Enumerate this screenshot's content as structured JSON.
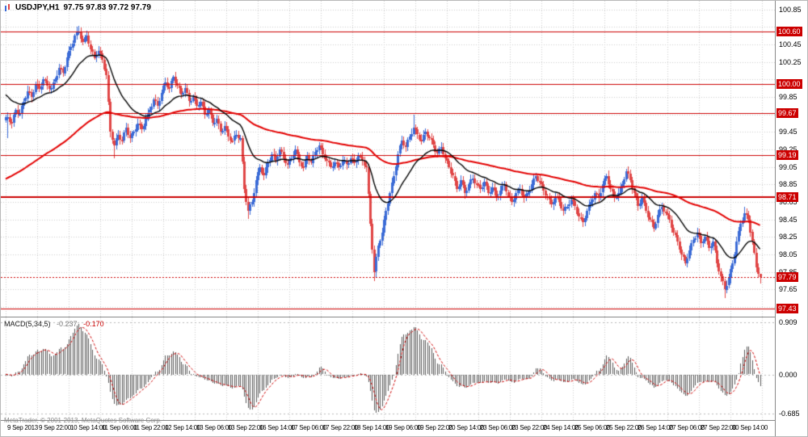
{
  "window": {
    "symbol_title": "USDJPY,H1",
    "ohlc_title": "97.75 97.83 97.72 97.79",
    "copyright": "MetaTrader, © 2001-2013, MetaQuotes Software Corp."
  },
  "colors": {
    "bull": "#3b6bd6",
    "bear": "#e04646",
    "ma_fast": "#000000",
    "ma_slow": "#e30000",
    "grid": "#cdcdcd",
    "hline": "#cc0000",
    "macd_bar": "#5a5a5a",
    "macd_signal": "#cc0000",
    "price_box_bg": "#cc0000",
    "price_box_text": "#ffffff"
  },
  "chart_data": {
    "type": "candlestick",
    "symbol": "USDJPY",
    "timeframe": "H1",
    "title": "USDJPY,H1 97.75 97.83 97.72 97.79",
    "price_pane": {
      "y_range": [
        97.34,
        100.95
      ],
      "y_ticks": [
        "100.85",
        "100.65",
        "100.45",
        "100.25",
        "100.05",
        "99.85",
        "99.65",
        "99.45",
        "99.25",
        "99.05",
        "98.85",
        "98.65",
        "98.45",
        "98.25",
        "98.05",
        "97.85",
        "97.65",
        "97.45"
      ],
      "hlines": [
        {
          "price": 100.6,
          "label": "100.60",
          "weight": 1
        },
        {
          "price": 100.0,
          "label": "100.00",
          "weight": 1
        },
        {
          "price": 99.67,
          "label": "99.67",
          "weight": 1
        },
        {
          "price": 99.19,
          "label": "99.19",
          "weight": 1
        },
        {
          "price": 98.71,
          "label": "98.71",
          "weight": 2
        },
        {
          "price": 97.43,
          "label": "97.43",
          "weight": 1
        }
      ],
      "bid": {
        "price": 97.79,
        "label": "97.79"
      },
      "first_open": 99.58,
      "closes_2h": [
        99.62,
        99.55,
        99.7,
        99.66,
        99.8,
        99.92,
        99.85,
        100.0,
        99.94,
        100.05,
        99.98,
        99.95,
        100.05,
        100.18,
        100.12,
        100.3,
        100.42,
        100.55,
        100.6,
        100.48,
        100.55,
        100.4,
        100.3,
        100.38,
        100.28,
        100.1,
        99.45,
        99.3,
        99.42,
        99.35,
        99.5,
        99.38,
        99.45,
        99.55,
        99.48,
        99.6,
        99.7,
        99.82,
        99.75,
        99.9,
        100.02,
        99.95,
        100.08,
        99.98,
        99.88,
        99.95,
        99.8,
        99.85,
        99.75,
        99.8,
        99.65,
        99.7,
        99.55,
        99.6,
        99.45,
        99.52,
        99.4,
        99.35,
        99.42,
        99.38,
        98.8,
        98.55,
        98.65,
        98.9,
        99.05,
        98.95,
        99.1,
        99.2,
        99.12,
        99.25,
        99.15,
        99.08,
        99.15,
        99.25,
        99.1,
        99.05,
        99.18,
        99.1,
        99.22,
        99.3,
        99.2,
        99.12,
        99.05,
        99.1,
        99.05,
        99.12,
        99.08,
        99.15,
        99.1,
        99.18,
        99.12,
        99.05,
        98.4,
        97.85,
        98.15,
        98.3,
        98.55,
        98.75,
        98.95,
        99.2,
        99.35,
        99.28,
        99.4,
        99.5,
        99.42,
        99.35,
        99.45,
        99.38,
        99.3,
        99.2,
        99.28,
        99.15,
        99.05,
        98.95,
        98.8,
        98.9,
        98.75,
        98.85,
        98.92,
        98.85,
        98.8,
        98.88,
        98.75,
        98.82,
        98.7,
        98.78,
        98.85,
        98.72,
        98.65,
        98.75,
        98.8,
        98.7,
        98.75,
        98.85,
        98.95,
        98.88,
        98.78,
        98.7,
        98.62,
        98.72,
        98.65,
        98.55,
        98.6,
        98.68,
        98.6,
        98.48,
        98.42,
        98.55,
        98.65,
        98.75,
        98.7,
        98.85,
        98.95,
        98.8,
        98.7,
        98.75,
        98.85,
        99.0,
        98.9,
        98.75,
        98.6,
        98.7,
        98.55,
        98.45,
        98.35,
        98.5,
        98.6,
        98.52,
        98.45,
        98.3,
        98.2,
        98.05,
        97.95,
        98.1,
        98.22,
        98.3,
        98.18,
        98.25,
        98.12,
        98.2,
        97.95,
        97.8,
        97.65,
        97.78,
        97.95,
        98.2,
        98.4,
        98.52,
        98.45,
        98.2,
        97.9,
        97.79
      ],
      "zigzag": 0.02,
      "wick_base": 0.025,
      "wick_overrides": {
        "1": {
          "low": 99.38
        },
        "37": {
          "high": 100.66
        },
        "55": {
          "low": 99.15
        },
        "123": {
          "low": 98.46
        },
        "187": {
          "low": 97.75
        },
        "207": {
          "high": 99.65
        },
        "365": {
          "low": 97.55
        },
        "375": {
          "high": 98.6
        },
        "383": {
          "high": 97.83,
          "low": 97.72
        }
      },
      "ma_fast": {
        "period": 24,
        "seed": 99.9
      },
      "ma_slow": {
        "period": 110,
        "seed": 98.9
      }
    },
    "macd_pane": {
      "name": "MACD(5,34,5)",
      "value_main": "-0.237",
      "value_signal": "-0.170",
      "fast": 5,
      "slow": 34,
      "signal": 5,
      "y_range": [
        -0.8,
        1.0
      ],
      "levels": [
        {
          "v": 0.909,
          "label": "0.909"
        },
        {
          "v": 0.0,
          "label": "0.000"
        },
        {
          "v": -0.685,
          "label": "-0.685"
        }
      ],
      "display_max": 0.88,
      "display_min": -0.67
    },
    "x_labels": [
      "9 Sep 2013",
      "9 Sep 22:00",
      "10 Sep 14:00",
      "11 Sep 06:00",
      "11 Sep 22:00",
      "12 Sep 14:00",
      "13 Sep 06:00",
      "13 Sep 22:00",
      "16 Sep 14:00",
      "17 Sep 06:00",
      "17 Sep 22:00",
      "18 Sep 14:00",
      "19 Sep 06:00",
      "19 Sep 22:00",
      "20 Sep 14:00",
      "23 Sep 06:00",
      "23 Sep 22:00",
      "24 Sep 14:00",
      "25 Sep 06:00",
      "25 Sep 22:00",
      "26 Sep 14:00",
      "27 Sep 06:00",
      "27 Sep 22:00",
      "30 Sep 14:00"
    ]
  }
}
